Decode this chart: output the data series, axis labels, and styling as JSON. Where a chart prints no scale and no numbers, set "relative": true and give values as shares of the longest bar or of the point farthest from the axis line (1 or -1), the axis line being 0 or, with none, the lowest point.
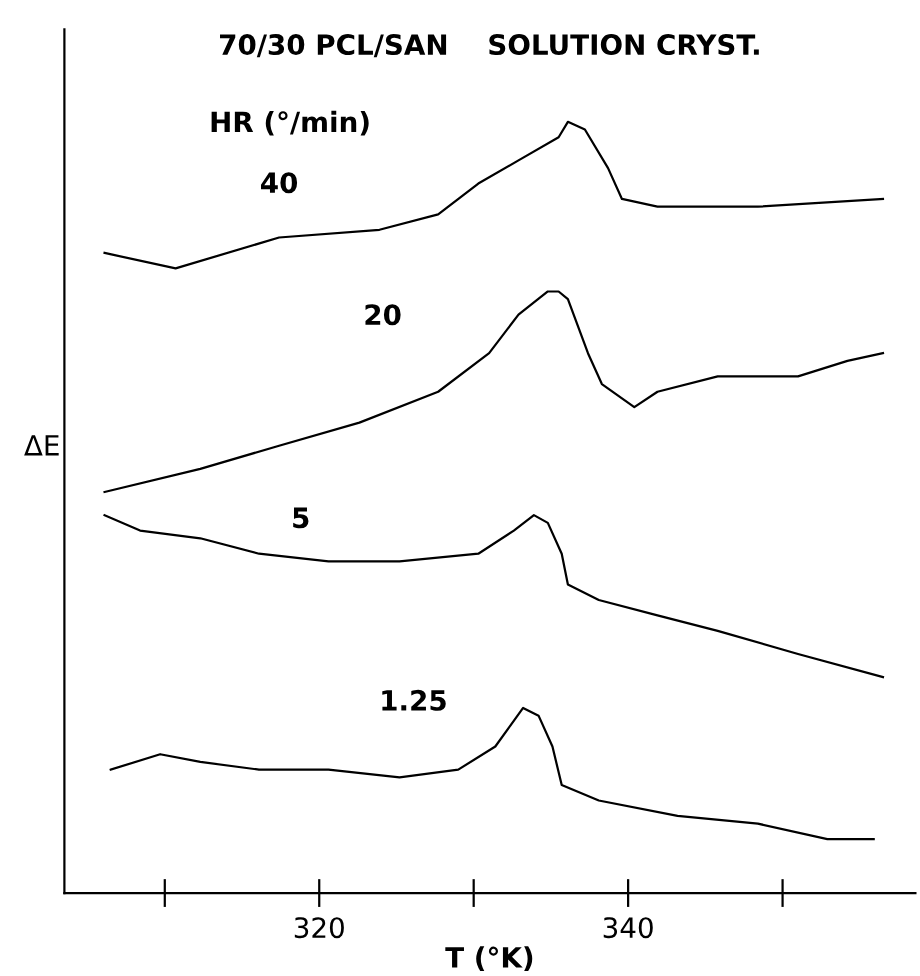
{
  "chart_data": {
    "type": "line",
    "title": "70/30 PCL/SAN    SOLUTION CRYST.",
    "xlabel": "T (°K)",
    "ylabel": "ΔE",
    "legend_title": "HR (°/min)",
    "relative": true,
    "grid": false,
    "legend": false,
    "marker": "none",
    "line_style": "solid",
    "xlim": [
      303.5,
      358.6
    ],
    "xticks": [
      {
        "value": 310,
        "label": null
      },
      320,
      {
        "value": 330,
        "label": null
      },
      340,
      {
        "value": 350,
        "label": null
      }
    ],
    "series": [
      {
        "name": "40",
        "color": "#000000",
        "x": [
          306.1,
          310.7,
          317.4,
          323.9,
          327.7,
          330.3,
          332.9,
          335.5,
          336.1,
          337.2,
          338.7,
          339.6,
          341.9,
          348.4,
          356.5
        ],
        "values": [
          0.83,
          0.81,
          0.85,
          0.86,
          0.88,
          0.92,
          0.95,
          0.98,
          1.0,
          0.99,
          0.94,
          0.9,
          0.89,
          0.89,
          0.9
        ]
      },
      {
        "name": "20",
        "color": "#000000",
        "x": [
          306.1,
          312.3,
          317.4,
          322.6,
          327.7,
          331.0,
          332.9,
          334.8,
          335.5,
          336.1,
          337.4,
          338.3,
          340.4,
          341.9,
          345.8,
          351.0,
          354.2,
          356.5
        ],
        "values": [
          0.52,
          0.55,
          0.58,
          0.61,
          0.65,
          0.7,
          0.75,
          0.78,
          0.78,
          0.77,
          0.7,
          0.66,
          0.63,
          0.65,
          0.67,
          0.67,
          0.69,
          0.7
        ]
      },
      {
        "name": "5",
        "color": "#000000",
        "x": [
          306.1,
          308.4,
          312.3,
          316.1,
          320.6,
          325.2,
          330.3,
          332.6,
          333.9,
          334.8,
          335.7,
          336.1,
          338.1,
          341.9,
          345.8,
          351.0,
          356.5
        ],
        "values": [
          0.49,
          0.47,
          0.46,
          0.44,
          0.43,
          0.43,
          0.44,
          0.47,
          0.49,
          0.48,
          0.44,
          0.4,
          0.38,
          0.36,
          0.34,
          0.31,
          0.28
        ]
      },
      {
        "name": "1.25",
        "color": "#000000",
        "x": [
          306.5,
          309.7,
          312.3,
          316.1,
          320.6,
          325.2,
          329.0,
          331.4,
          333.2,
          334.2,
          335.1,
          335.7,
          338.1,
          343.2,
          348.4,
          352.9,
          355.9
        ],
        "values": [
          0.16,
          0.18,
          0.17,
          0.16,
          0.16,
          0.15,
          0.16,
          0.19,
          0.24,
          0.23,
          0.19,
          0.14,
          0.12,
          0.1,
          0.09,
          0.07,
          0.07
        ]
      }
    ]
  }
}
